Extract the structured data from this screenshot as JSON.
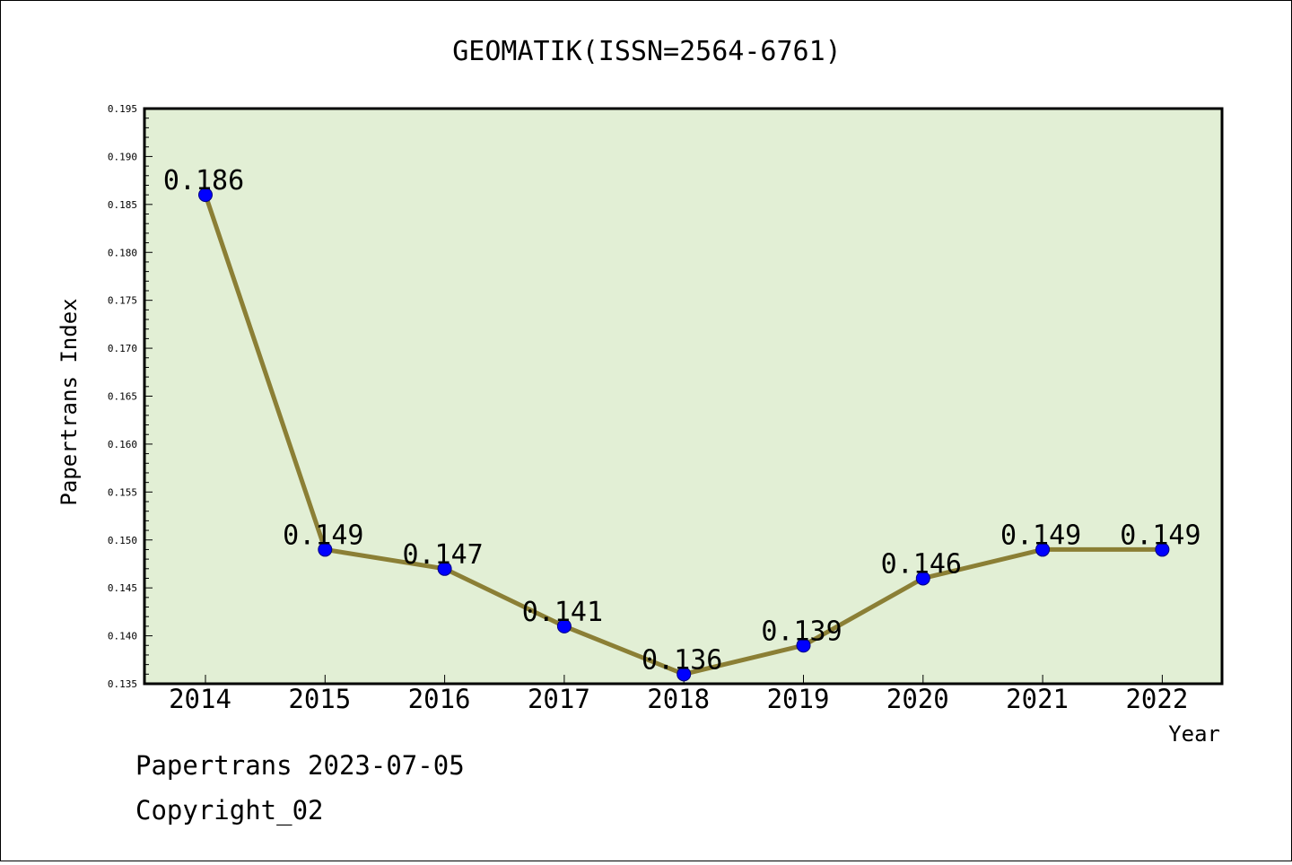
{
  "chart_data": {
    "type": "line",
    "title": "GEOMATIK(ISSN=2564-6761)",
    "xlabel": "Year",
    "ylabel": "Papertrans Index",
    "categories": [
      "2014",
      "2015",
      "2016",
      "2017",
      "2018",
      "2019",
      "2020",
      "2021",
      "2022"
    ],
    "values": [
      0.186,
      0.149,
      0.147,
      0.141,
      0.136,
      0.139,
      0.146,
      0.149,
      0.149
    ],
    "data_labels": [
      "0.186",
      "0.149",
      "0.147",
      "0.141",
      "0.136",
      "0.139",
      "0.146",
      "0.149",
      "0.149"
    ],
    "ylim": [
      0.135,
      0.195
    ],
    "yticks": [
      "0.135",
      "0.140",
      "0.145",
      "0.150",
      "0.155",
      "0.160",
      "0.165",
      "0.170",
      "0.175",
      "0.180",
      "0.185",
      "0.190",
      "0.195"
    ],
    "grid": false,
    "colors": {
      "plot_background": "#e2efd5",
      "line": "#8b7f35",
      "marker": "#0000ff"
    }
  },
  "footer": {
    "date_line": "Papertrans 2023-07-05",
    "copyright_line": "Copyright_02"
  }
}
